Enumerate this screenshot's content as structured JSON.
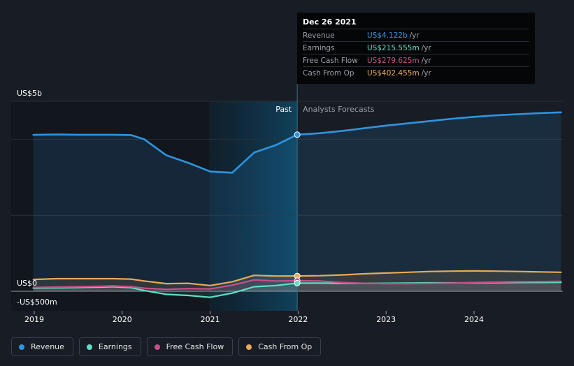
{
  "chart_data": {
    "type": "area",
    "y_unit_label_top": "US$5b",
    "y_unit_label_zero": "US$0",
    "y_unit_label_neg": "-US$500m",
    "ylim": [
      -500,
      5000
    ],
    "xlim": [
      2018.9,
      2024.99
    ],
    "x_ticks": [
      2019,
      2020,
      2021,
      2022,
      2023,
      2024
    ],
    "x_tick_labels": [
      "2019",
      "2020",
      "2021",
      "2022",
      "2023",
      "2024"
    ],
    "past_label": "Past",
    "forecast_label": "Analysts Forecasts",
    "divider_x": 2021.99,
    "highlight_start": 2020.99,
    "grid": true,
    "series": [
      {
        "name": "Revenue",
        "color": "#2d95e0",
        "x": [
          2018.99,
          2019.25,
          2019.5,
          2019.75,
          2019.9,
          2020.1,
          2020.25,
          2020.5,
          2020.75,
          2021.0,
          2021.25,
          2021.5,
          2021.75,
          2021.99,
          2022.25,
          2022.5,
          2022.75,
          2023.0,
          2023.25,
          2023.5,
          2023.75,
          2024.0,
          2024.25,
          2024.5,
          2024.75,
          2024.99
        ],
        "y": [
          4115,
          4125,
          4120,
          4120,
          4120,
          4110,
          4000,
          3580,
          3380,
          3150,
          3120,
          3650,
          3850,
          4122,
          4160,
          4220,
          4290,
          4360,
          4420,
          4480,
          4540,
          4590,
          4630,
          4660,
          4690,
          4710
        ]
      },
      {
        "name": "Earnings",
        "color": "#5fe0c6",
        "x": [
          2018.99,
          2019.25,
          2019.5,
          2019.75,
          2019.9,
          2020.1,
          2020.25,
          2020.5,
          2020.75,
          2021.0,
          2021.25,
          2021.5,
          2021.75,
          2021.99,
          2022.25,
          2022.5,
          2022.75,
          2023.0,
          2023.25,
          2023.5,
          2023.75,
          2024.0,
          2024.25,
          2024.5,
          2024.75,
          2024.99
        ],
        "y": [
          80,
          90,
          100,
          110,
          120,
          95,
          20,
          -80,
          -110,
          -160,
          -50,
          120,
          150,
          215.555,
          215,
          210,
          210,
          210,
          215,
          220,
          220,
          220,
          225,
          230,
          232,
          235
        ]
      },
      {
        "name": "Free Cash Flow",
        "color": "#c8508a",
        "x": [
          2018.99,
          2019.25,
          2019.5,
          2019.75,
          2019.9,
          2020.1,
          2020.25,
          2020.5,
          2020.75,
          2021.0,
          2021.25,
          2021.5,
          2021.75,
          2021.99,
          2022.25,
          2022.5,
          2022.75,
          2023.0,
          2023.25,
          2023.5,
          2023.75,
          2024.0,
          2024.25,
          2024.5,
          2024.75,
          2024.99
        ],
        "y": [
          100,
          110,
          120,
          130,
          140,
          120,
          80,
          50,
          70,
          60,
          160,
          300,
          270,
          279.625,
          270,
          230,
          210,
          200,
          200,
          205,
          215,
          230,
          240,
          250,
          255,
          260
        ]
      },
      {
        "name": "Cash From Op",
        "color": "#e8a95a",
        "x": [
          2018.99,
          2019.25,
          2019.5,
          2019.75,
          2019.9,
          2020.1,
          2020.25,
          2020.5,
          2020.75,
          2021.0,
          2021.25,
          2021.5,
          2021.75,
          2021.99,
          2022.25,
          2022.5,
          2022.75,
          2023.0,
          2023.25,
          2023.5,
          2023.75,
          2024.0,
          2024.25,
          2024.5,
          2024.75,
          2024.99
        ],
        "y": [
          310,
          330,
          330,
          330,
          330,
          320,
          270,
          200,
          210,
          150,
          250,
          420,
          400,
          402.455,
          410,
          430,
          460,
          480,
          500,
          520,
          530,
          535,
          530,
          520,
          510,
          500
        ]
      }
    ]
  },
  "tooltip": {
    "date": "Dec 26 2021",
    "rows": [
      {
        "label": "Revenue",
        "value": "US$4.122b",
        "unit": "/yr",
        "color": "#2d95e0"
      },
      {
        "label": "Earnings",
        "value": "US$215.555m",
        "unit": "/yr",
        "color": "#5fe0c6"
      },
      {
        "label": "Free Cash Flow",
        "value": "US$279.625m",
        "unit": "/yr",
        "color": "#c8508a"
      },
      {
        "label": "Cash From Op",
        "value": "US$402.455m",
        "unit": "/yr",
        "color": "#e8a95a"
      }
    ]
  },
  "legend": [
    {
      "label": "Revenue",
      "color": "#2d95e0"
    },
    {
      "label": "Earnings",
      "color": "#5fe0c6"
    },
    {
      "label": "Free Cash Flow",
      "color": "#c8508a"
    },
    {
      "label": "Cash From Op",
      "color": "#e8a95a"
    }
  ]
}
